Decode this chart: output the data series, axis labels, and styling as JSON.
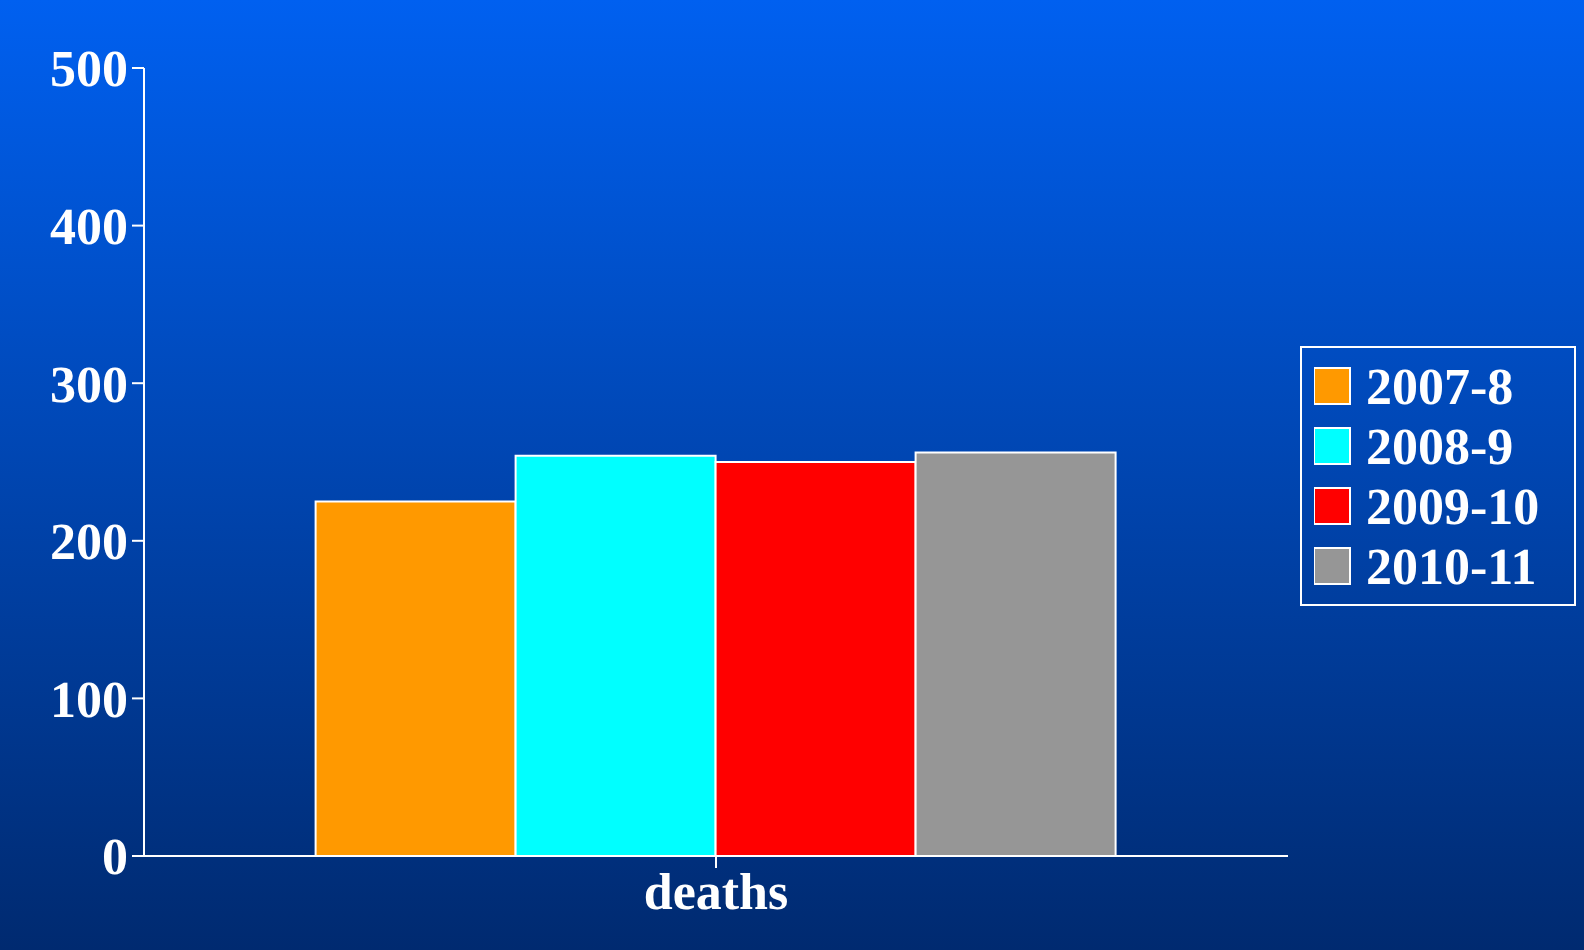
{
  "chart_data": {
    "type": "bar",
    "categories": [
      "deaths"
    ],
    "series": [
      {
        "name": "2007-8",
        "color": "#ff9900",
        "values": [
          225
        ]
      },
      {
        "name": "2008-9",
        "color": "#00ffff",
        "values": [
          254
        ]
      },
      {
        "name": "2009-10",
        "color": "#ff0000",
        "values": [
          250
        ]
      },
      {
        "name": "2010-11",
        "color": "#969696",
        "values": [
          256
        ]
      }
    ],
    "ylim": [
      0,
      500
    ],
    "yticks": [
      0,
      100,
      200,
      300,
      400,
      500
    ],
    "grid": false,
    "legend": "right"
  }
}
